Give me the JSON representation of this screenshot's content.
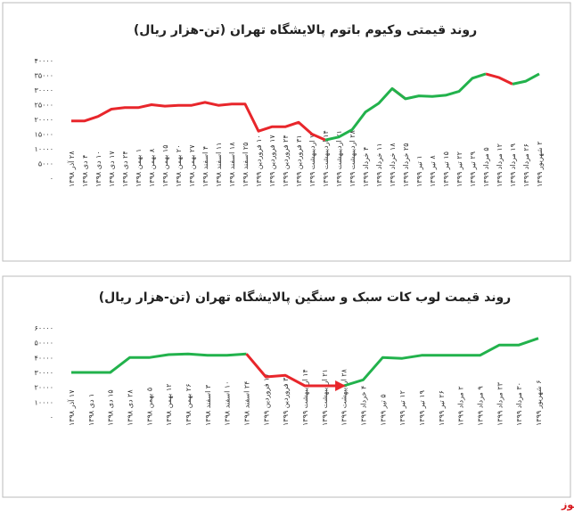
{
  "chart_data": [
    {
      "type": "line",
      "title": "روند قیمتی وکیوم باتوم پالایشگاه تهران (تن-هزار ریال)",
      "categories": [
        "۲۸ آذر ۱۳۹۸",
        "۴ دی ۱۳۹۸",
        "۱۰ دی ۱۳۹۸",
        "۱۷ دی ۱۳۹۸",
        "۲۴ دی ۱۳۹۸",
        "۱ بهمن ۱۳۹۸",
        "۸ بهمن ۱۳۹۸",
        "۱۵ بهمن ۱۳۹۸",
        "۲۰ بهمن ۱۳۹۸",
        "۲۷ بهمن ۱۳۹۸",
        "۴ اسفند ۱۳۹۸",
        "۱۱ اسفند ۱۳۹۸",
        "۱۸ اسفند ۱۳۹۸",
        "۲۵ اسفند ۱۳۹۸",
        "۱۰ فروردین ۱۳۹۹",
        "۱۷ فروردین ۱۳۹۹",
        "۲۴ فروردین ۱۳۹۹",
        "۳۱ فروردین ۱۳۹۹",
        "۷ اردیبهشت ۱۳۹۹",
        "۱۴ اردیبهشت ۱۳۹۹",
        "۲۱ اردیبهشت ۱۳۹۹",
        "۲۸ اردیبهشت ۱۳۹۹",
        "۴ خرداد ۱۳۹۹",
        "۱۱ خرداد ۱۳۹۹",
        "۱۸ خرداد ۱۳۹۹",
        "۲۵ خرداد ۱۳۹۹",
        "۱ تیر ۱۳۹۹",
        "۸ تیر ۱۳۹۹",
        "۱۵ تیر ۱۳۹۹",
        "۲۲ تیر ۱۳۹۹",
        "۲۹ تیر ۱۳۹۹",
        "۵ مرداد ۱۳۹۹",
        "۱۲ مرداد ۱۳۹۹",
        "۱۹ مرداد ۱۳۹۹",
        "۲۶ مرداد ۱۳۹۹",
        "۲ شهریور ۱۳۹۹"
      ],
      "series": [
        {
          "color": "#e8262b",
          "values": [
            19500,
            19500,
            21000,
            23500,
            24000,
            24000,
            25000,
            24500,
            24800,
            24800,
            25800,
            24800,
            25200,
            25200,
            16000,
            17500,
            17500,
            19000,
            15000,
            13000,
            null,
            null,
            null,
            null,
            30500,
            27000,
            null,
            null,
            null,
            null,
            null,
            35500,
            34200,
            32000,
            null,
            null
          ]
        },
        {
          "color": "#22b24c",
          "values": [
            null,
            null,
            null,
            null,
            null,
            null,
            null,
            null,
            null,
            null,
            null,
            null,
            null,
            null,
            null,
            null,
            null,
            null,
            null,
            13000,
            14000,
            16500,
            22500,
            25500,
            30500,
            27000,
            28000,
            27800,
            28200,
            29500,
            34000,
            35500,
            null,
            32000,
            33000,
            35500
          ]
        }
      ],
      "ylim": [
        0,
        40000
      ],
      "yticks": [
        {
          "value": 0,
          "label": "۰"
        },
        {
          "value": 5000,
          "label": "۵۰۰۰"
        },
        {
          "value": 10000,
          "label": "۱۰۰۰۰"
        },
        {
          "value": 15000,
          "label": "۱۵۰۰۰"
        },
        {
          "value": 20000,
          "label": "۲۰۰۰۰"
        },
        {
          "value": 25000,
          "label": "۲۵۰۰۰"
        },
        {
          "value": 30000,
          "label": "۳۰۰۰۰"
        },
        {
          "value": 35000,
          "label": "۳۵۰۰۰"
        },
        {
          "value": 40000,
          "label": "۴۰۰۰۰"
        }
      ],
      "grid": false
    },
    {
      "type": "line",
      "title": "روند قیمت لوب کات سبک و سنگین پالایشگاه تهران (تن-هزار ریال)",
      "categories": [
        "۱۷ آذر ۱۳۹۸",
        "۱ دی ۱۳۹۸",
        "۱۵ دی ۱۳۹۸",
        "۲۸ دی ۱۳۹۸",
        "۵ بهمن ۱۳۹۸",
        "۱۲ بهمن ۱۳۹۸",
        "۲۶ بهمن ۱۳۹۸",
        "۳ اسفند ۱۳۹۸",
        "۱۰ اسفند ۱۳۹۸",
        "۲۴ اسفند ۱۳۹۸",
        "۱۷ فروردین ۱۳۹۹",
        "۳۱ فروردین ۱۳۹۹",
        "۱۴ اردیبهشت ۱۳۹۹",
        "۲۱ اردیبهشت ۱۳۹۹",
        "۲۸ اردیبهشت ۱۳۹۹",
        "۴ خرداد ۱۳۹۹",
        "۵ تیر ۱۳۹۹",
        "۱۲ تیر ۱۳۹۹",
        "۱۹ تیر ۱۳۹۹",
        "۲۶ تیر ۱۳۹۹",
        "۲ مرداد ۱۳۹۹",
        "۹ مرداد ۱۳۹۹",
        "۲۳ مرداد ۱۳۹۹",
        "۳۰ مرداد ۱۳۹۹",
        "۶ شهریور ۱۳۹۹"
      ],
      "series": [
        {
          "color": "#22b24c",
          "values": [
            30000,
            30000,
            30000,
            40000,
            40000,
            42000,
            42500,
            41500,
            41500,
            42500,
            null,
            null,
            null,
            null,
            21000,
            25000,
            40000,
            39500,
            41500,
            41500,
            41500,
            41500,
            48500,
            48500,
            53000
          ]
        },
        {
          "color": "#e8262b",
          "arrow": true,
          "values": [
            null,
            null,
            null,
            null,
            null,
            null,
            null,
            null,
            null,
            42500,
            27000,
            28000,
            21000,
            21000,
            21000,
            null,
            null,
            null,
            null,
            null,
            null,
            null,
            null,
            null,
            null
          ]
        }
      ],
      "ylim": [
        0,
        60000
      ],
      "yticks": [
        {
          "value": 0,
          "label": "۰"
        },
        {
          "value": 10000,
          "label": "۱۰۰۰۰"
        },
        {
          "value": 20000,
          "label": "۲۰۰۰۰"
        },
        {
          "value": 30000,
          "label": "۳۰۰۰۰"
        },
        {
          "value": 40000,
          "label": "۴۰۰۰۰"
        },
        {
          "value": 50000,
          "label": "۵۰۰۰۰"
        },
        {
          "value": 60000,
          "label": "۶۰۰۰۰"
        }
      ],
      "grid": false
    }
  ],
  "source": "بورس نیوز"
}
